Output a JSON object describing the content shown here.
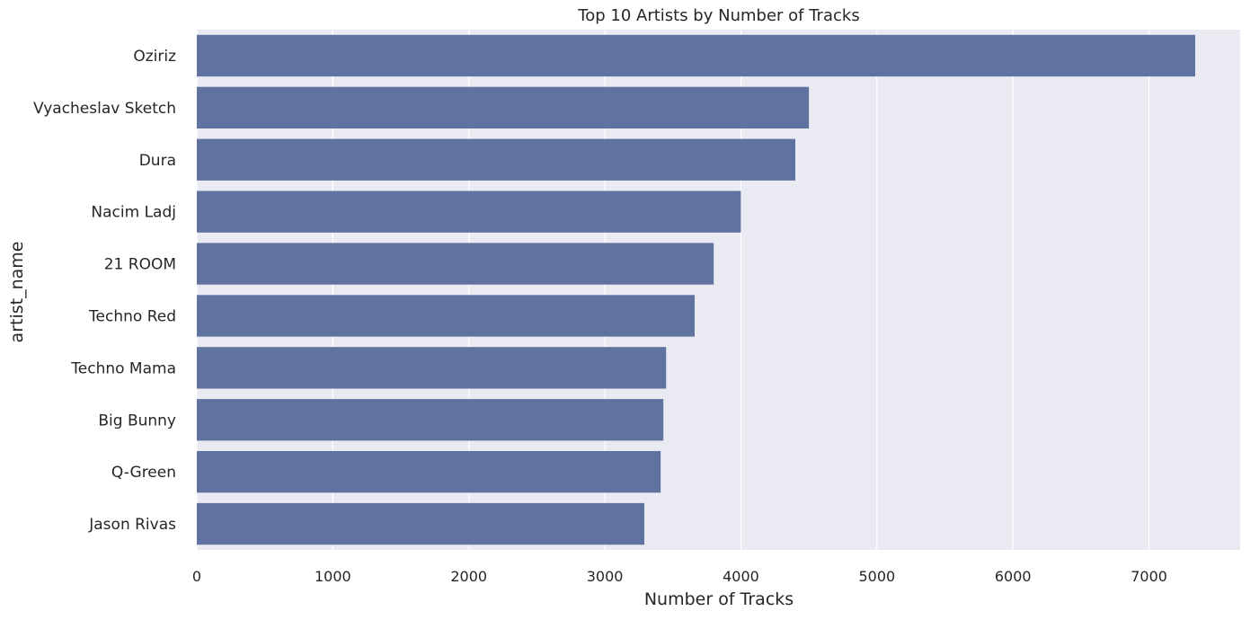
{
  "chart_data": {
    "type": "bar",
    "orientation": "horizontal",
    "title": "Top 10 Artists by Number of Tracks",
    "xlabel": "Number of Tracks",
    "ylabel": "artist_name",
    "categories": [
      "Oziriz",
      "Vyacheslav Sketch",
      "Dura",
      "Nacim Ladj",
      "21 ROOM",
      "Techno Red",
      "Techno Mama",
      "Big Bunny",
      "Q-Green",
      "Jason Rivas"
    ],
    "values": [
      7340,
      4500,
      4400,
      4000,
      3800,
      3660,
      3450,
      3430,
      3410,
      3290
    ],
    "xlim": [
      0,
      7670
    ],
    "xticks": [
      0,
      1000,
      2000,
      3000,
      4000,
      5000,
      6000,
      7000
    ],
    "grid": true,
    "colors": {
      "bar": "#6073a0",
      "plot_background": "#eaeaf2",
      "grid": "#ffffff",
      "text": "#262626"
    }
  }
}
